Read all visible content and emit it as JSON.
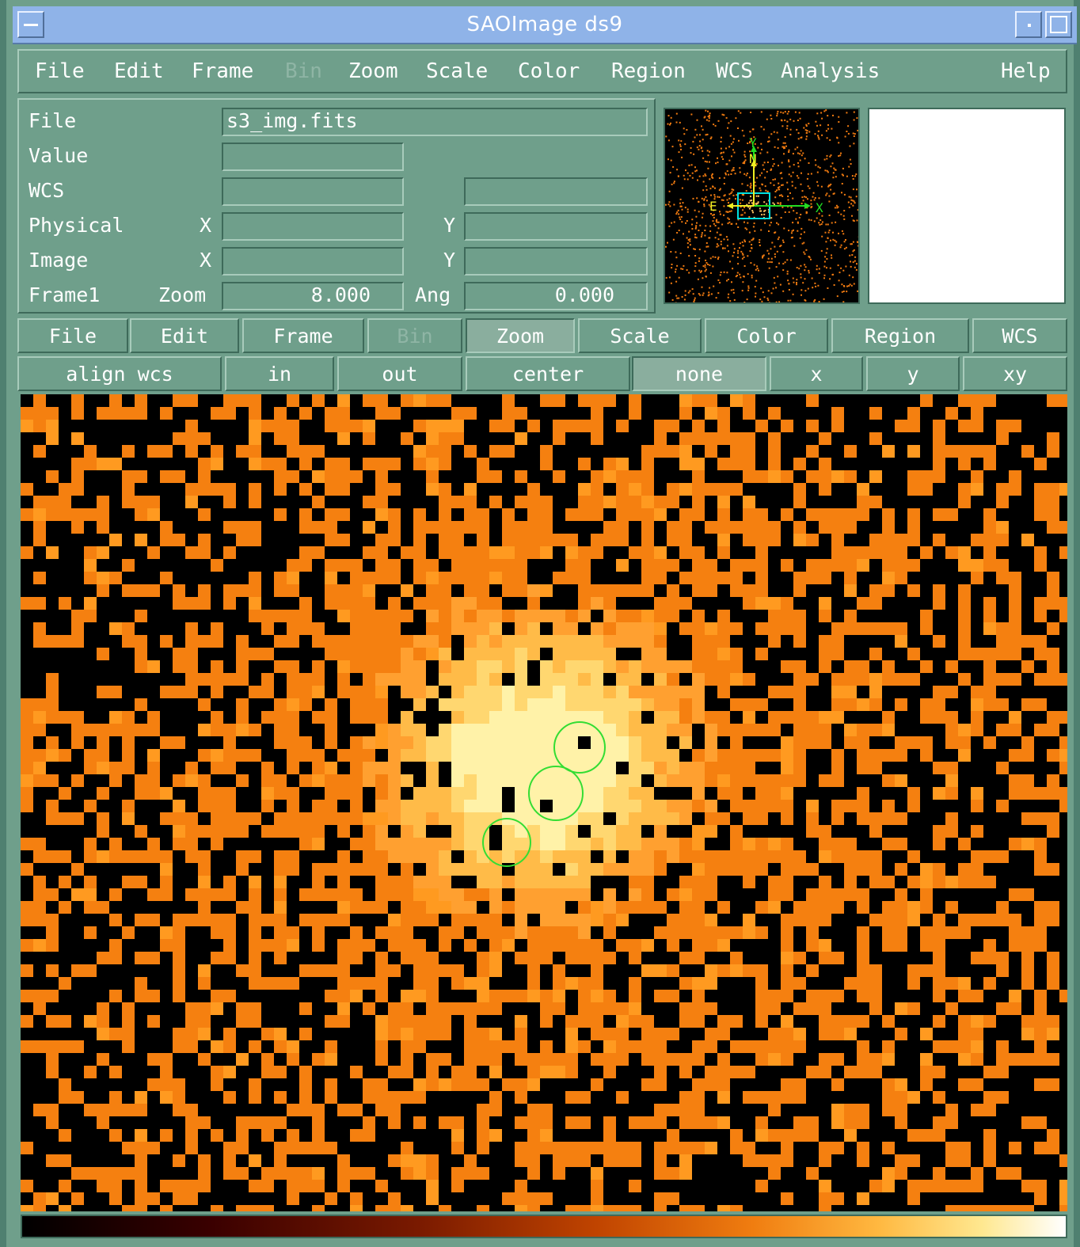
{
  "window": {
    "title": "SAOImage ds9"
  },
  "menubar": {
    "items": [
      {
        "label": "File",
        "enabled": true
      },
      {
        "label": "Edit",
        "enabled": true
      },
      {
        "label": "Frame",
        "enabled": true
      },
      {
        "label": "Bin",
        "enabled": false
      },
      {
        "label": "Zoom",
        "enabled": true
      },
      {
        "label": "Scale",
        "enabled": true
      },
      {
        "label": "Color",
        "enabled": true
      },
      {
        "label": "Region",
        "enabled": true
      },
      {
        "label": "WCS",
        "enabled": true
      },
      {
        "label": "Analysis",
        "enabled": true
      }
    ],
    "help": "Help"
  },
  "info": {
    "file_label": "File",
    "file_value": "s3_img.fits",
    "value_label": "Value",
    "value_value": "",
    "wcs_label": "WCS",
    "wcs_value1": "",
    "wcs_value2": "",
    "physical_label": "Physical",
    "physical_x_label": "X",
    "physical_x": "",
    "physical_y_label": "Y",
    "physical_y": "",
    "image_label": "Image",
    "image_x_label": "X",
    "image_x": "",
    "image_y_label": "Y",
    "image_y": "",
    "frame_label": "Frame1",
    "zoom_label": "Zoom",
    "zoom_value": "8.000",
    "ang_label": "Ang",
    "ang_value": "0.000"
  },
  "panner": {
    "compass": {
      "n": "N",
      "e": "E",
      "x": "X",
      "y": "Y"
    }
  },
  "buttonbar": {
    "items": [
      {
        "label": "File",
        "enabled": true,
        "active": false
      },
      {
        "label": "Edit",
        "enabled": true,
        "active": false
      },
      {
        "label": "Frame",
        "enabled": true,
        "active": false
      },
      {
        "label": "Bin",
        "enabled": false,
        "active": false
      },
      {
        "label": "Zoom",
        "enabled": true,
        "active": true
      },
      {
        "label": "Scale",
        "enabled": true,
        "active": false
      },
      {
        "label": "Color",
        "enabled": true,
        "active": false
      },
      {
        "label": "Region",
        "enabled": true,
        "active": false
      },
      {
        "label": "WCS",
        "enabled": true,
        "active": false
      }
    ]
  },
  "zoombar": {
    "items": [
      "align wcs",
      "in",
      "out",
      "center",
      "none",
      "x",
      "y",
      "xy"
    ]
  },
  "colors": {
    "ui_bg": "#6f9f8b",
    "titlebar": "#8fb3e8",
    "region": "#33dd33",
    "colormap": "heat"
  }
}
